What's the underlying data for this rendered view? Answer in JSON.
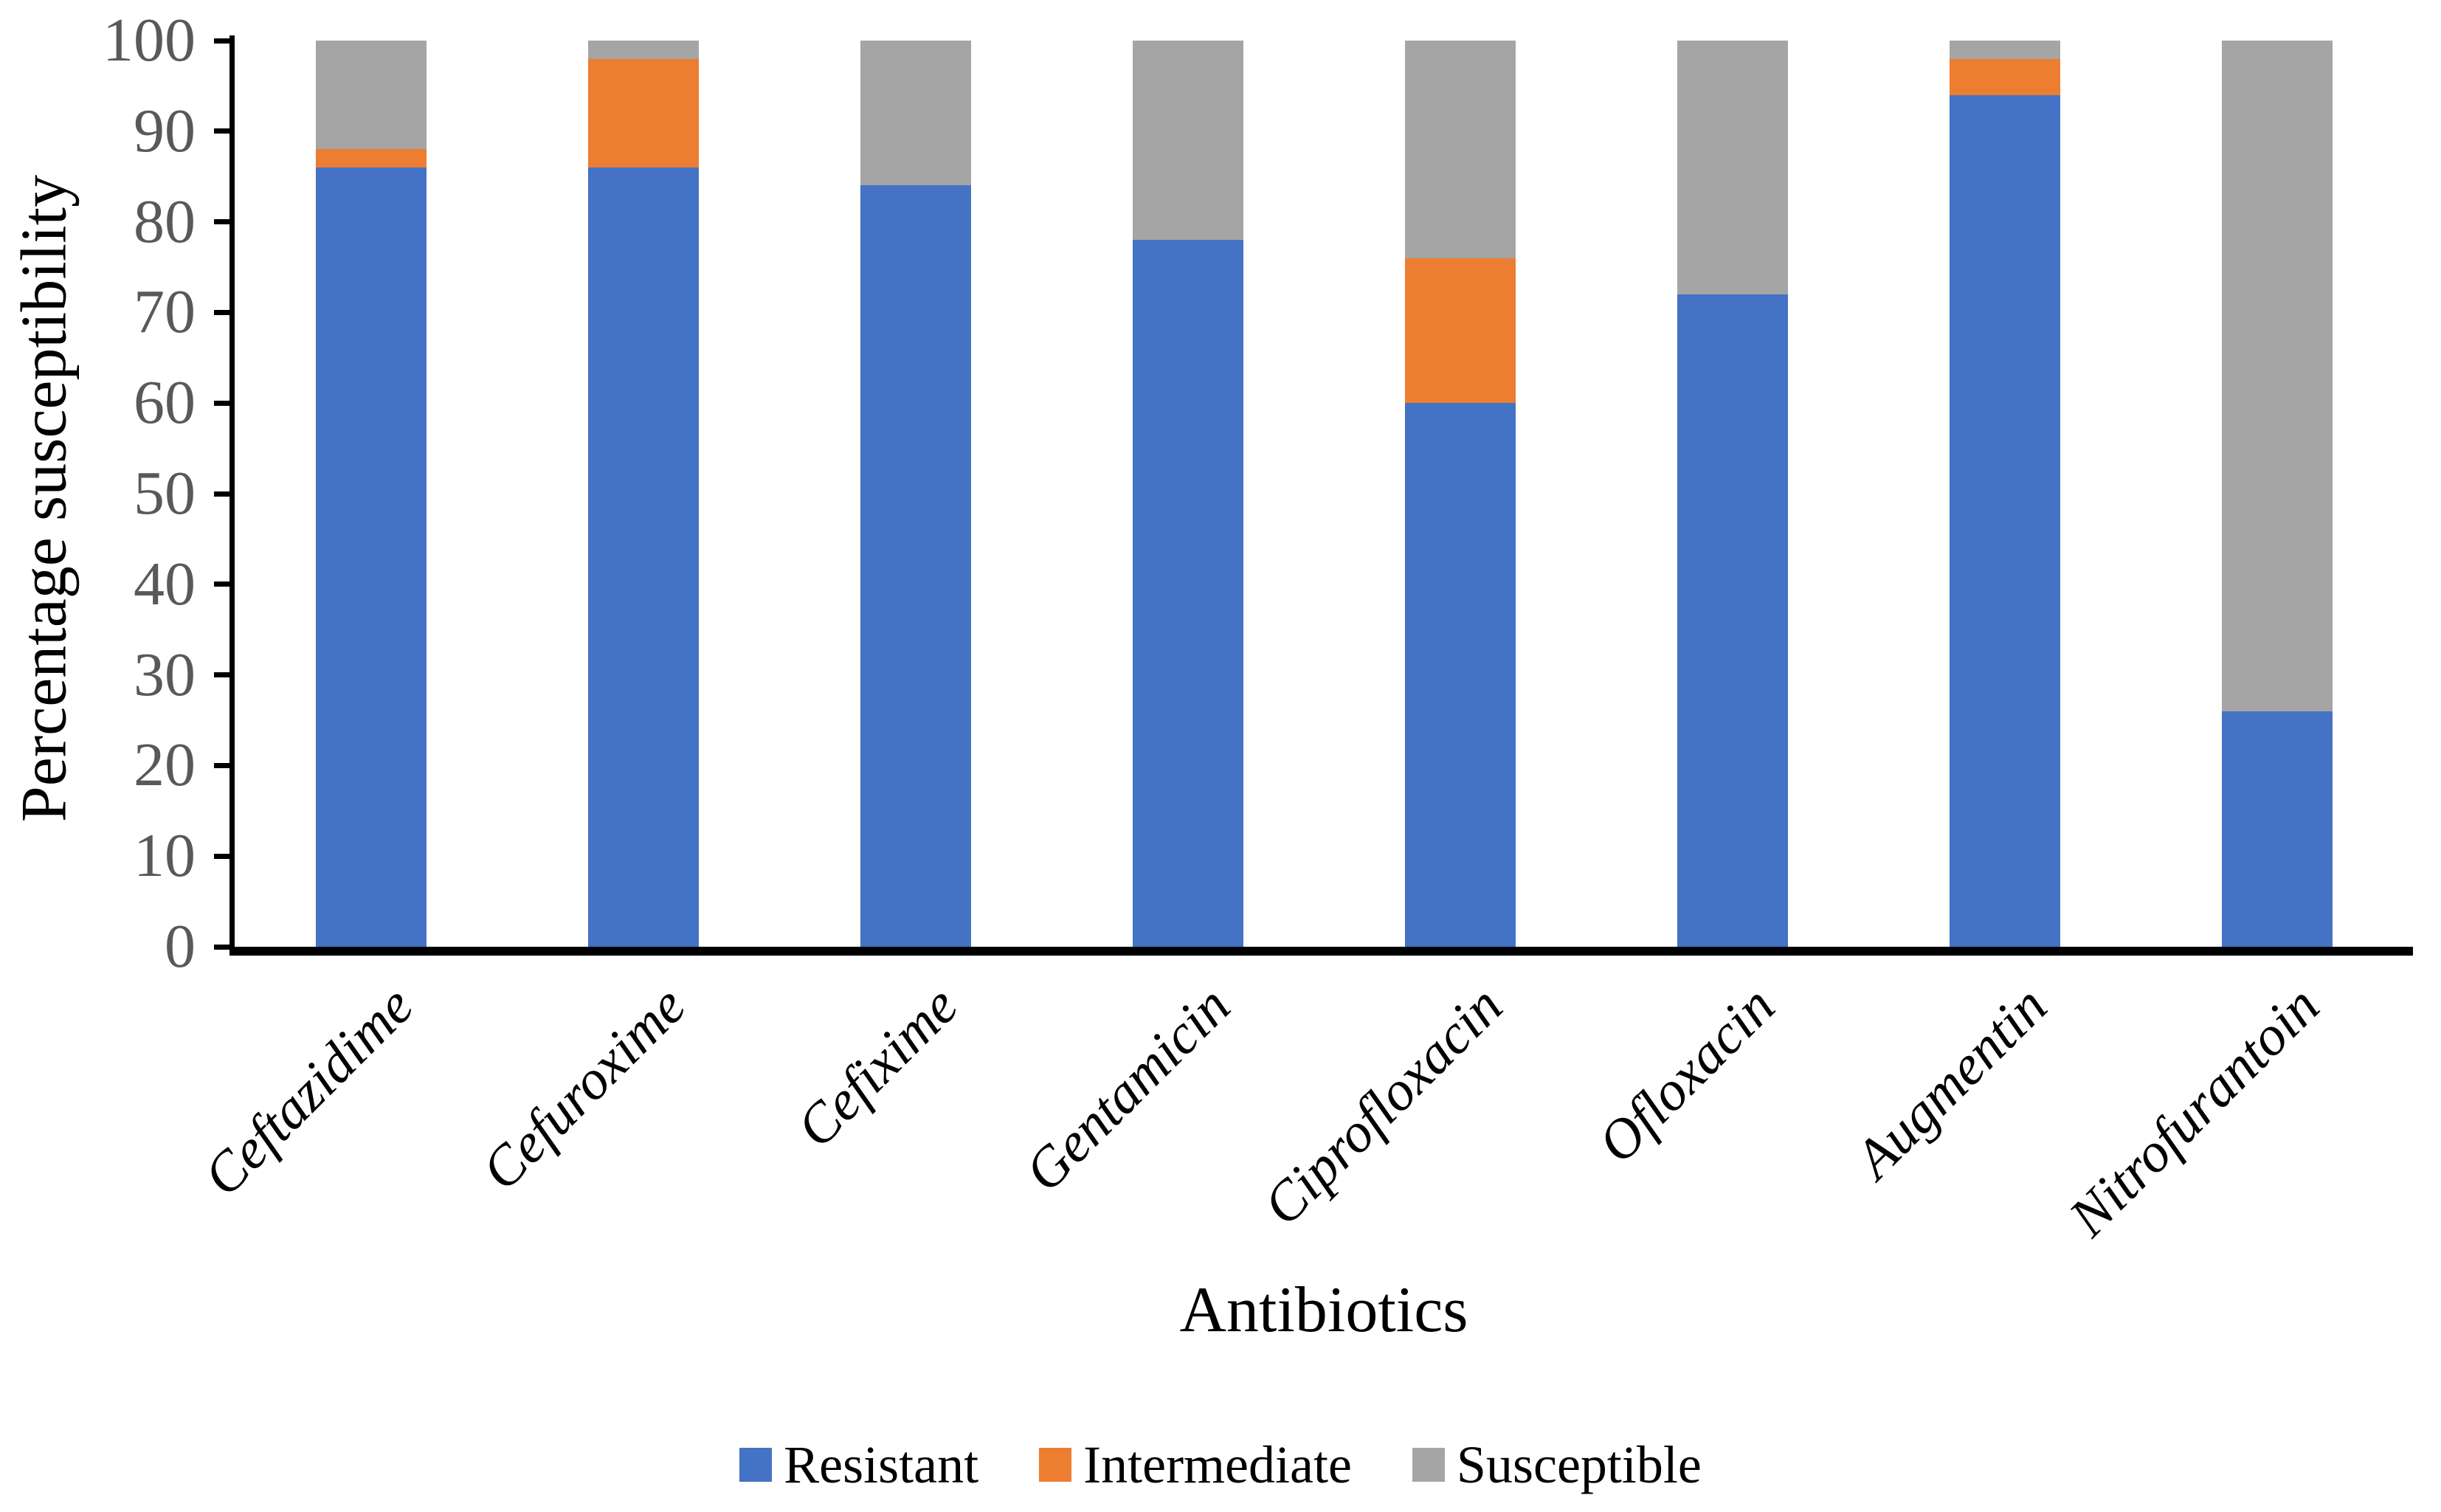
{
  "chart_data": {
    "type": "bar",
    "stacked": true,
    "title": "",
    "xlabel": "Antibiotics",
    "ylabel": "Percentage susceptibility",
    "ylim": [
      0,
      100
    ],
    "yticks": [
      0,
      10,
      20,
      30,
      40,
      50,
      60,
      70,
      80,
      90,
      100
    ],
    "grid": false,
    "legend_position": "bottom",
    "categories": [
      "Ceftazidime",
      "Cefuroxime",
      "Cefixime",
      "Gentamicin",
      "Ciprofloxacin",
      "Ofloxacin",
      "Augmentin",
      "Nitrofurantoin"
    ],
    "series": [
      {
        "name": "Resistant",
        "color": "#4472C4",
        "values": [
          86,
          86,
          84,
          78,
          60,
          72,
          94,
          26
        ]
      },
      {
        "name": "Intermediate",
        "color": "#ED7D31",
        "values": [
          2,
          12,
          0,
          0,
          16,
          0,
          4,
          0
        ]
      },
      {
        "name": "Susceptible",
        "color": "#A5A5A5",
        "values": [
          12,
          2,
          16,
          22,
          24,
          28,
          2,
          74
        ]
      }
    ],
    "axis_color": "#000000",
    "tick_label_color": "#595959"
  }
}
